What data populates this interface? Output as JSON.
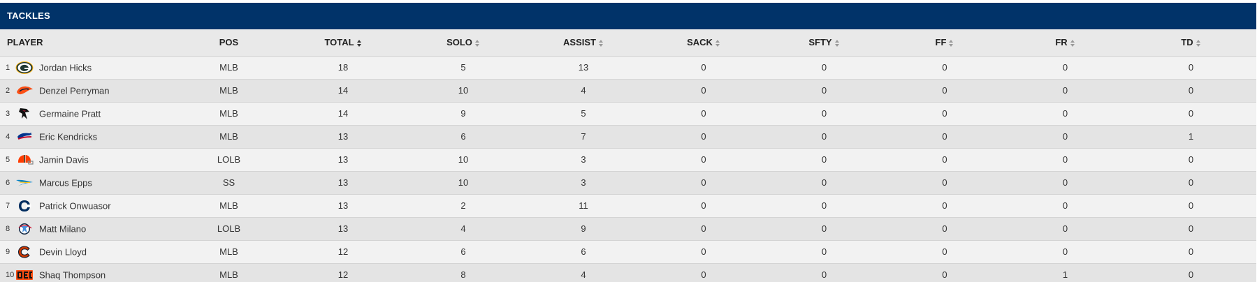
{
  "table": {
    "title": "TACKLES",
    "columns": [
      {
        "key": "player",
        "label": "PLAYER",
        "sortable": false
      },
      {
        "key": "pos",
        "label": "POS",
        "sortable": false
      },
      {
        "key": "total",
        "label": "TOTAL",
        "sortable": true,
        "active": true
      },
      {
        "key": "solo",
        "label": "SOLO",
        "sortable": true
      },
      {
        "key": "assist",
        "label": "ASSIST",
        "sortable": true
      },
      {
        "key": "sack",
        "label": "SACK",
        "sortable": true
      },
      {
        "key": "sfty",
        "label": "SFTY",
        "sortable": true
      },
      {
        "key": "ff",
        "label": "FF",
        "sortable": true
      },
      {
        "key": "fr",
        "label": "FR",
        "sortable": true
      },
      {
        "key": "td",
        "label": "TD",
        "sortable": true
      }
    ],
    "rows": [
      {
        "rank": "1",
        "team_icon": "packers-logo-icon",
        "player": "Jordan Hicks",
        "pos": "MLB",
        "total": "18",
        "solo": "5",
        "assist": "13",
        "sack": "0",
        "sfty": "0",
        "ff": "0",
        "fr": "0",
        "td": "0"
      },
      {
        "rank": "2",
        "team_icon": "broncos-logo-icon",
        "player": "Denzel Perryman",
        "pos": "MLB",
        "total": "14",
        "solo": "10",
        "assist": "4",
        "sack": "0",
        "sfty": "0",
        "ff": "0",
        "fr": "0",
        "td": "0"
      },
      {
        "rank": "3",
        "team_icon": "falcons-logo-icon",
        "player": "Germaine Pratt",
        "pos": "MLB",
        "total": "14",
        "solo": "9",
        "assist": "5",
        "sack": "0",
        "sfty": "0",
        "ff": "0",
        "fr": "0",
        "td": "0"
      },
      {
        "rank": "4",
        "team_icon": "bills-logo-icon",
        "player": "Eric Kendricks",
        "pos": "MLB",
        "total": "13",
        "solo": "6",
        "assist": "7",
        "sack": "0",
        "sfty": "0",
        "ff": "0",
        "fr": "0",
        "td": "1"
      },
      {
        "rank": "5",
        "team_icon": "browns-logo-icon",
        "player": "Jamin Davis",
        "pos": "LOLB",
        "total": "13",
        "solo": "10",
        "assist": "3",
        "sack": "0",
        "sfty": "0",
        "ff": "0",
        "fr": "0",
        "td": "0"
      },
      {
        "rank": "6",
        "team_icon": "chargers-logo-icon",
        "player": "Marcus Epps",
        "pos": "SS",
        "total": "13",
        "solo": "10",
        "assist": "3",
        "sack": "0",
        "sfty": "0",
        "ff": "0",
        "fr": "0",
        "td": "0"
      },
      {
        "rank": "7",
        "team_icon": "colts-logo-icon",
        "player": "Patrick Onwuasor",
        "pos": "MLB",
        "total": "13",
        "solo": "2",
        "assist": "11",
        "sack": "0",
        "sfty": "0",
        "ff": "0",
        "fr": "0",
        "td": "0"
      },
      {
        "rank": "8",
        "team_icon": "titans-logo-icon",
        "player": "Matt Milano",
        "pos": "LOLB",
        "total": "13",
        "solo": "4",
        "assist": "9",
        "sack": "0",
        "sfty": "0",
        "ff": "0",
        "fr": "0",
        "td": "0"
      },
      {
        "rank": "9",
        "team_icon": "bears-logo-icon",
        "player": "Devin Lloyd",
        "pos": "MLB",
        "total": "12",
        "solo": "6",
        "assist": "6",
        "sack": "0",
        "sfty": "0",
        "ff": "0",
        "fr": "0",
        "td": "0"
      },
      {
        "rank": "10",
        "team_icon": "bengals-logo-icon",
        "player": "Shaq Thompson",
        "pos": "MLB",
        "total": "12",
        "solo": "8",
        "assist": "4",
        "sack": "0",
        "sfty": "0",
        "ff": "0",
        "fr": "1",
        "td": "0"
      }
    ]
  },
  "colors": {
    "title_bar": "#013369",
    "header_bg": "#e9e9e9",
    "row_odd": "#f2f2f2",
    "row_even": "#e4e4e4"
  }
}
